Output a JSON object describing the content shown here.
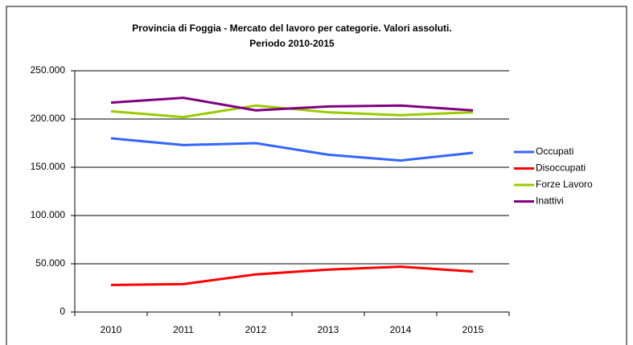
{
  "chart_data": {
    "type": "line",
    "title": "Provincia di Foggia - Mercato del lavoro per categorie. Valori assoluti.",
    "subtitle": "Periodo 2010-2015",
    "categories": [
      "2010",
      "2011",
      "2012",
      "2013",
      "2014",
      "2015"
    ],
    "series": [
      {
        "name": "Occupati",
        "color": "#3366ff",
        "values": [
          180000,
          173000,
          175000,
          163000,
          157000,
          165000
        ]
      },
      {
        "name": "Disoccupati",
        "color": "#ff0000",
        "values": [
          28000,
          29000,
          39000,
          44000,
          47000,
          42000
        ]
      },
      {
        "name": "Forze Lavoro",
        "color": "#99cc00",
        "values": [
          208000,
          202000,
          214000,
          207000,
          204000,
          207000
        ]
      },
      {
        "name": "Inattivi",
        "color": "#800080",
        "values": [
          217000,
          222000,
          209000,
          213000,
          214000,
          209000
        ]
      }
    ],
    "ylim": [
      0,
      250000
    ],
    "yticks": [
      0,
      {
        "value": 50000,
        "label": "50.000"
      },
      {
        "value": 100000,
        "label": "100.000"
      },
      {
        "value": 150000,
        "label": "150.000"
      },
      {
        "value": 200000,
        "label": "200.000"
      },
      {
        "value": 250000,
        "label": "250.000"
      }
    ],
    "grid": true,
    "legend": "right"
  }
}
